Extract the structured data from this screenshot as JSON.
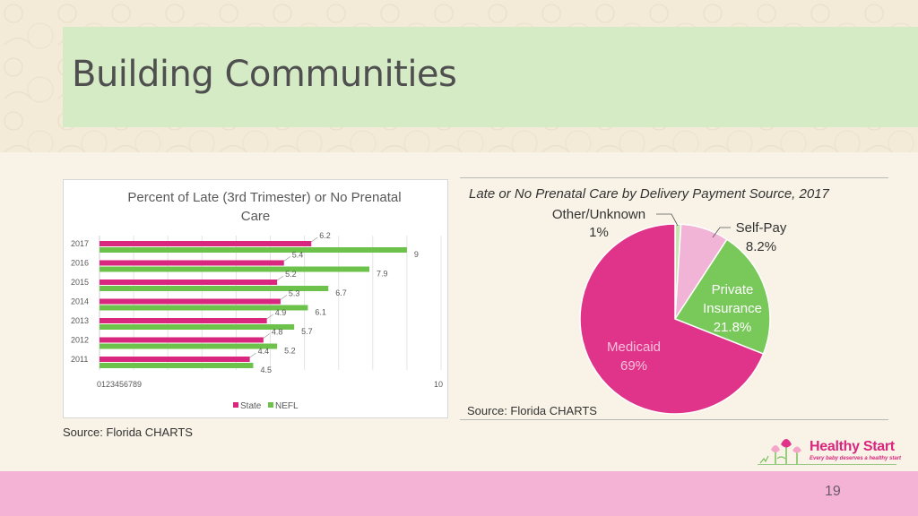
{
  "slide": {
    "title": "Building Communities",
    "page_number": "19",
    "left_source": "Source: Florida CHARTS",
    "right_source": "Source: Florida CHARTS"
  },
  "logo": {
    "name": "Healthy Start",
    "tagline": "Every baby deserves a healthy start"
  },
  "colors": {
    "state": "#d9267e",
    "nefl": "#6cc24a",
    "medicaid": "#e0338a",
    "private": "#78c95a",
    "selfpay": "#f1b3d6",
    "other": "#c7e6b2"
  },
  "chart_data": [
    {
      "type": "bar",
      "orientation": "horizontal",
      "title": "Percent of Late (3rd Trimester) or No Prenatal Care",
      "categories": [
        "2011",
        "2012",
        "2013",
        "2014",
        "2015",
        "2016",
        "2017"
      ],
      "series": [
        {
          "name": "State",
          "values": [
            4.4,
            4.8,
            4.9,
            5.3,
            5.2,
            5.4,
            6.2
          ]
        },
        {
          "name": "NEFL",
          "values": [
            4.5,
            5.2,
            5.7,
            6.1,
            6.7,
            7.9,
            9
          ]
        }
      ],
      "value_labels": {
        "state": [
          "4.4",
          "4.8",
          "4.9",
          "5.3",
          "5.2",
          "5.4",
          "6.2"
        ],
        "nefl": [
          "4.5",
          "5.2",
          "5.7",
          "6.1",
          "6.7",
          "7.9",
          "9"
        ]
      },
      "xlim": [
        0,
        10
      ],
      "x_tick_text": "0123456789",
      "x_tick_end": "10",
      "legend_position": "bottom",
      "grid": true
    },
    {
      "type": "pie",
      "title": "Late or No Prenatal Care by Delivery Payment Source, 2017",
      "slices": [
        {
          "key": "other",
          "label": "Other/Unknown",
          "value_label": "1%",
          "value": 1
        },
        {
          "key": "selfpay",
          "label": "Self-Pay",
          "value_label": "8.2%",
          "value": 8.2
        },
        {
          "key": "private",
          "label_lines": [
            "Private",
            "Insurance"
          ],
          "value_label": "21.8%",
          "value": 21.8
        },
        {
          "key": "medicaid",
          "label": "Medicaid",
          "value_label": "69%",
          "value": 69
        }
      ]
    }
  ]
}
